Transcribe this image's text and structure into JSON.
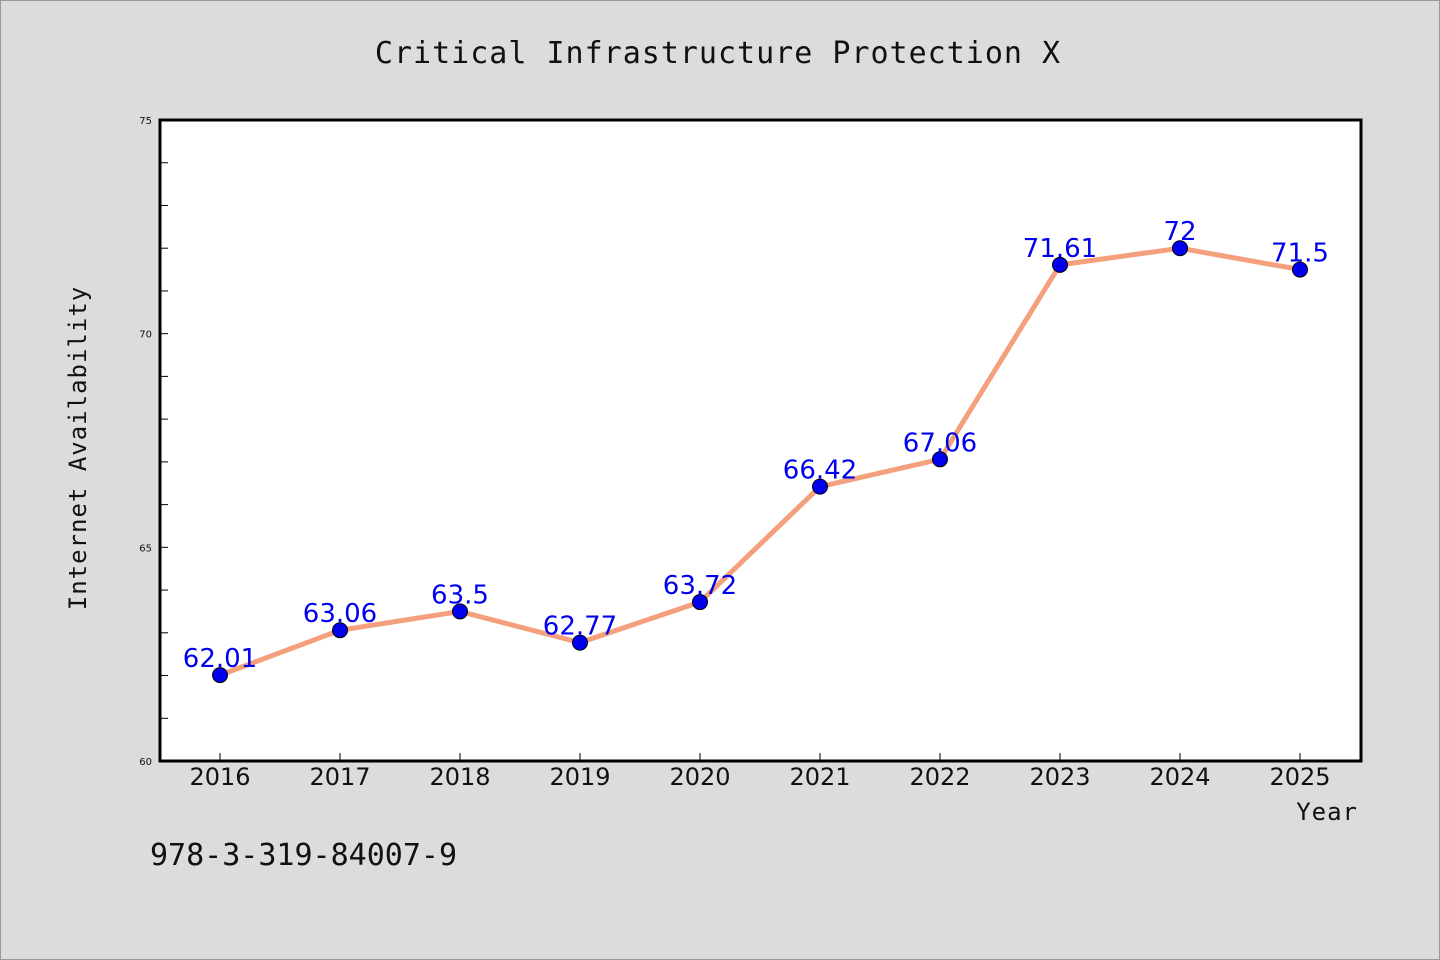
{
  "chart_data": {
    "type": "line",
    "title": "Critical Infrastructure Protection X",
    "xlabel": "Year",
    "ylabel": "Internet Availability",
    "categories": [
      "2016",
      "2017",
      "2018",
      "2019",
      "2020",
      "2021",
      "2022",
      "2023",
      "2024",
      "2025"
    ],
    "series": [
      {
        "values": [
          62.01,
          63.06,
          63.5,
          62.77,
          63.72,
          66.42,
          67.06,
          71.61,
          72,
          71.5
        ],
        "labels": [
          "62.01",
          "63.06",
          "63.5",
          "62.77",
          "63.72",
          "66.42",
          "67.06",
          "71.61",
          "72",
          "71.5"
        ],
        "line_color": "#f4a07c",
        "marker_color": "#0000ee",
        "label_color": "#0000ee"
      }
    ],
    "ylim": [
      60,
      75
    ],
    "yticks": [
      60,
      65,
      70,
      75
    ],
    "grid": false,
    "legend": "none"
  },
  "footer": {
    "isbn": "978-3-319-84007-9"
  },
  "colors": {
    "background": "#dcdcdc",
    "plot_background": "#ffffff",
    "axis": "#000000"
  }
}
